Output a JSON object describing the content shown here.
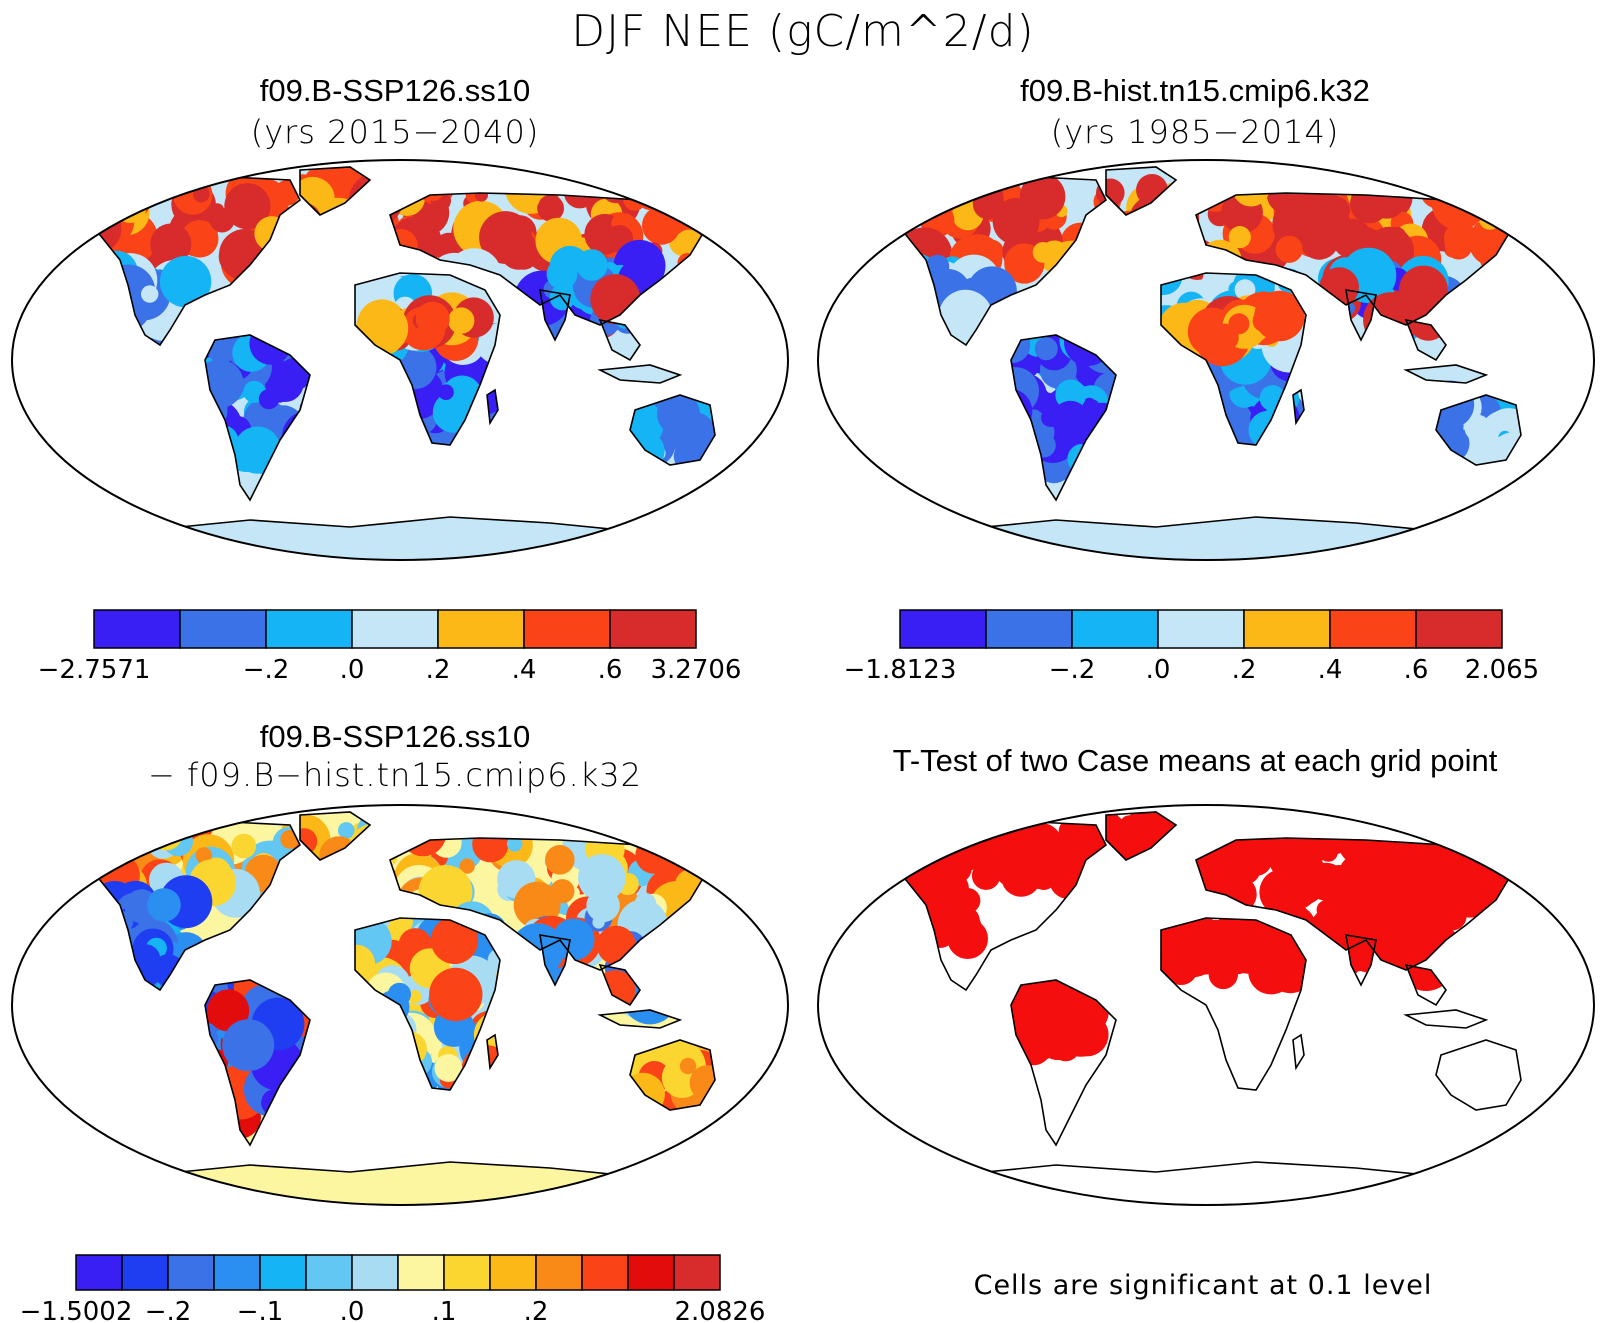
{
  "title": "DJF NEE (gC/m^2/d)",
  "panels": [
    {
      "id": "tl",
      "title": "f09.B-SSP126.ss10",
      "subtitle": "(yrs 2015−2040)",
      "colors": [
        "#3a1ff5",
        "#3b72e8",
        "#14b4f5",
        "#c4e6f6",
        "#fcb816",
        "#fa4418",
        "#d82b2b"
      ],
      "ticks": [
        "−2.7571",
        "",
        "−.2",
        ".0",
        ".2",
        ".4",
        ".6",
        "3.2706"
      ],
      "ocean": "#ffffff",
      "land_low": "#14b4f5",
      "land_high": "#d82b2b",
      "land_base": "#c4e6f6",
      "antarctica": "#c4e6f6"
    },
    {
      "id": "tr",
      "title": "f09.B-hist.tn15.cmip6.k32",
      "subtitle": "(yrs 1985−2014)",
      "colors": [
        "#3a1ff5",
        "#3b72e8",
        "#14b4f5",
        "#c4e6f6",
        "#fcb816",
        "#fa4418",
        "#d82b2b"
      ],
      "ticks": [
        "−1.8123",
        "",
        "−.2",
        ".0",
        ".2",
        ".4",
        ".6",
        "2.065"
      ],
      "ocean": "#ffffff",
      "land_low": "#14b4f5",
      "land_high": "#d82b2b",
      "land_base": "#c4e6f6",
      "antarctica": "#c4e6f6"
    },
    {
      "id": "bl",
      "title": "f09.B-SSP126.ss10",
      "subtitle": "− f09.B−hist.tn15.cmip6.k32",
      "colors": [
        "#3a1ff5",
        "#1f3ef2",
        "#3b72e8",
        "#2a8ff0",
        "#14b4f5",
        "#62c7f2",
        "#a8dcf3",
        "#fcf6a0",
        "#fcd630",
        "#fcb816",
        "#fa8a18",
        "#fa4418",
        "#e20c0c",
        "#d82b2b"
      ],
      "ticks": [
        "−1.5002",
        "",
        "−.2",
        "",
        "−.1",
        "",
        ".0",
        "",
        ".1",
        "",
        ".2",
        "",
        "",
        "",
        "2.0826"
      ],
      "ocean": "#ffffff",
      "land_low": "#3b72e8",
      "land_high": "#fa4418",
      "land_base": "#fcf6a0",
      "antarctica": "#fcf6a0"
    },
    {
      "id": "br",
      "title": "T-Test of two Case means at each grid point",
      "subtitle": "",
      "ocean": "#ffffff",
      "land_base": "#ffffff",
      "significant_color": "#f50e0e"
    }
  ],
  "footnote": "Cells are significant at 0.1 level"
}
